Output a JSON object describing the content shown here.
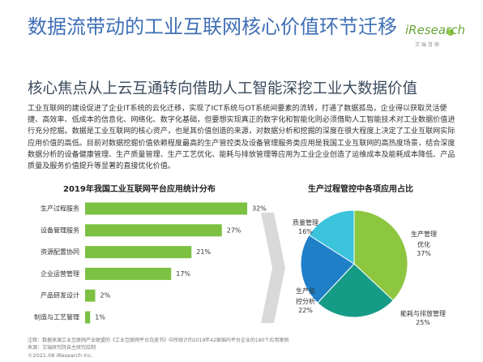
{
  "slide": {
    "title": "数据流带动的工业互联网核心价值环节迁移",
    "subtitle": "核心焦点从上云互通转向借助人工智能深挖工业大数据价值",
    "logo": "iResearch",
    "logo_sub": "艾 瑞 咨 询",
    "body": "工业互联网的建设促进了企业IT系统的云化迁移，实现了ICT系统与OT系统间要素的流转，打通了数据孤岛，企业得以获取灵活便捷、高效率、低成本的信息化、网络化、数字化基础，但要想实现真正的数字化和智能化则必须借助人工智能技术对工业数据价值进行充分挖掘。数据是工业互联网的核心资产，也是其价值创造的来源，对数据分析和挖掘的深度在很大程度上决定了工业互联网实际应用价值的高低。目前对数据挖掘价值依赖程度最高的生产管控类及设备管理服务类应用是我国工业互联网的高热度场景，结合深度数据分析的设备健康管理、生产质量管理、生产工艺优化、能耗与排放管理等应用为工业企业创造了运维成本及能耗成本降低、产品质量及服务价值提升等显著的直接优化价值。",
    "note": "注释：数据来源工业互联网产业联盟的《工业互联网平台白皮书》中所统计的2019年42家国内平台企业的180个应用案例",
    "source": "来源：艾瑞研究院自主研究绘制",
    "copyright": "©2021.08 iResearch Inc."
  },
  "chart_data": [
    {
      "type": "bar",
      "orientation": "horizontal",
      "title": "2019年我国工业互联网平台应用统计分布",
      "categories": [
        "生产过程服务",
        "设备管理服务",
        "资源配置协同",
        "企业运营管理",
        "产品研发设计",
        "制造与工艺管理"
      ],
      "values": [
        32,
        27,
        21,
        17,
        2,
        1
      ],
      "value_labels": [
        "32%",
        "27%",
        "21%",
        "17%",
        "2%",
        "1%"
      ],
      "color": "#7cc142"
    },
    {
      "type": "pie",
      "title": "生产过程管控中各项应用占比",
      "categories": [
        "生产管理优化",
        "能耗与排放管理",
        "生产监控分析",
        "质量管理"
      ],
      "values": [
        37,
        25,
        22,
        16
      ],
      "value_labels": [
        "37%",
        "25%",
        "22%",
        "16%"
      ],
      "colors": [
        "#8dc63f",
        "#169c86",
        "#1f80c8",
        "#3cc3dc"
      ]
    }
  ]
}
